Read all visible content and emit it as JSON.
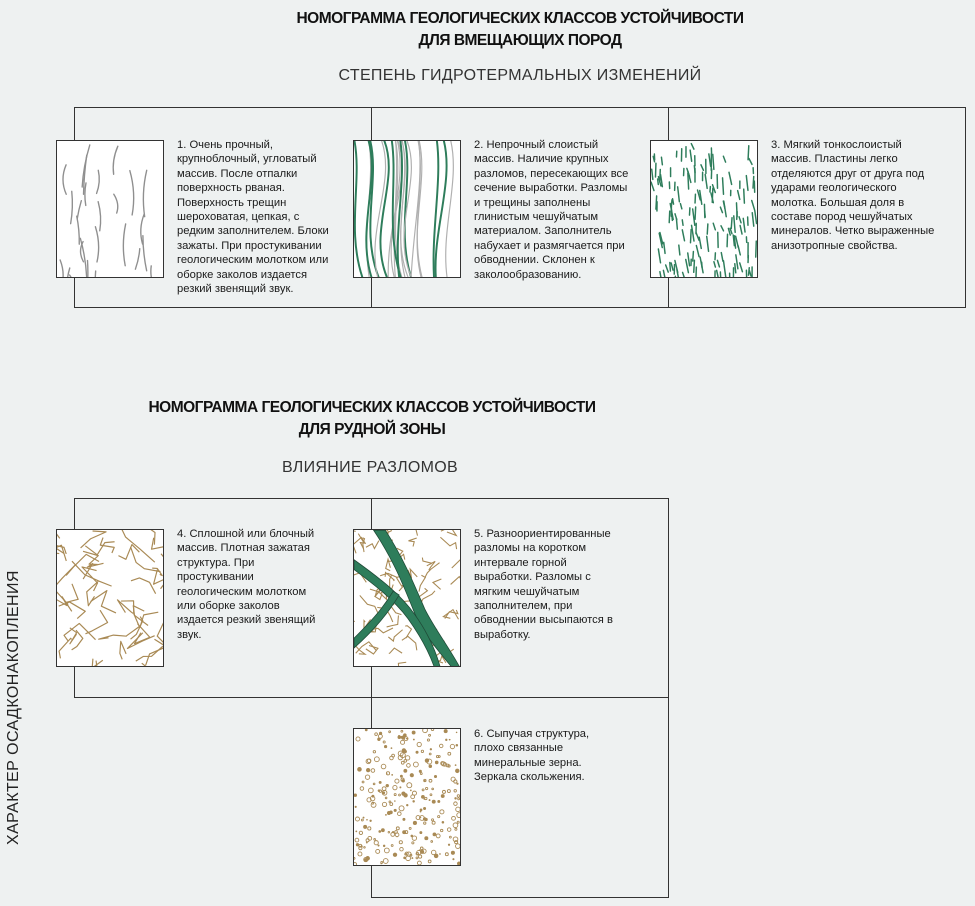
{
  "section1": {
    "title_line1": "НОМОГРАММА ГЕОЛОГИЧЕСКИХ КЛАССОВ УСТОЙЧИВОСТИ",
    "title_line2": "ДЛЯ ВМЕЩАЮЩИХ ПОРОД",
    "subtitle": "СТЕПЕНЬ ГИДРОТЕРМАЛЬНЫХ ИЗМЕНЕНИЙ",
    "classes": [
      {
        "pattern": "grey-fracture-lines",
        "text": "1. Очень прочный,\nкрупноблочный, угловатый\nмассив. После отпалки\nповерхность рваная.\nПоверхность трещин\nшероховатая, цепкая, с\nредким заполнителем. Блоки\nзажаты. При простукивании\nгеологическим молотком или\nоборке заколов издается\nрезкий звенящий звук."
      },
      {
        "pattern": "green-grey-layered-lines",
        "text": "2.  Непрочный слоистый\nмассив. Наличие крупных\nразломов, пересекающих все\nсечение выработки. Разломы\nи трещины заполнены\nглинистым чешуйчатым\nматериалом. Заполнитель\nнабухает и размягчается при\nобводнении.  Склонен к\nзаколообразованию."
      },
      {
        "pattern": "green-thin-flakes",
        "text": "3. Мягкий тонкослоистый\nмассив. Пластины легко\nотделяются друг от друга под\nударами геологического\nмолотка. Большая доля в\nсоставе пород чешуйчатых\nминералов. Четко выраженные\nанизотропные свойства."
      }
    ]
  },
  "section2": {
    "title_line1": "НОМОГРАММА ГЕОЛОГИЧЕСКИХ КЛАССОВ УСТОЙЧИВОСТИ",
    "title_line2": "ДЛЯ РУДНОЙ ЗОНЫ",
    "subtitle": "ВЛИЯНИЕ РАЗЛОМОВ",
    "vertical_axis_label": "ХАРАКТЕР ОСАДКОНАКОПЛЕНИЯ",
    "classes": [
      {
        "pattern": "brown-block-network",
        "text": "4. Сплошной или блочный\nмассив. Плотная зажатая\nструктура.  При\nпростукивании\nгеологическим молотком\nили оборке заколов\nиздается резкий звенящий\nзвук."
      },
      {
        "pattern": "brown-network-with-green-faults",
        "text": "5. Разноориентированные\nразломы на коротком\nинтервале горной\nвыработки. Разломы с\nмягким чешуйчатым\nзаполнителем, при\nобводнении высыпаются в\nвыработку."
      },
      {
        "pattern": "brown-loose-grains",
        "text": "6. Сыпучая структура,\nплохо связанные\nминеральные зерна.\nЗеркала скольжения."
      }
    ]
  },
  "colors": {
    "background": "#eef1f1",
    "lines": "#333333",
    "grey_fracture": "#8f8f8f",
    "green_fault": "#2e7d5b",
    "brown_fracture": "#a98a55"
  }
}
